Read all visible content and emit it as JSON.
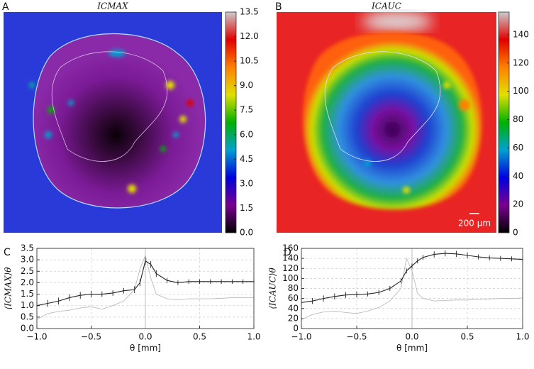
{
  "chart_data": [
    {
      "type": "heatmap",
      "panel_label": "A",
      "title": "ICMAX",
      "colormap": [
        "#000000",
        "#7a0090",
        "#0000dd",
        "#00a0d0",
        "#00b000",
        "#e0e000",
        "#ff8000",
        "#e00000",
        "#cccccc"
      ],
      "clim": [
        0,
        13.5
      ],
      "cticks": [
        {
          "value": 0,
          "label": "0.0"
        },
        1.5,
        {
          "value": 3,
          "label": "3.0"
        },
        4.5,
        {
          "value": 6,
          "label": "6.0"
        },
        7.5,
        {
          "value": 9,
          "label": "9.0"
        },
        10.5,
        {
          "value": 12,
          "label": "12.0"
        },
        13.5
      ]
    },
    {
      "type": "heatmap",
      "panel_label": "B",
      "title": "ICAUC",
      "colormap": [
        "#000000",
        "#7a0090",
        "#0000dd",
        "#00a0d0",
        "#00b000",
        "#e0e000",
        "#ff8000",
        "#e00000",
        "#cccccc"
      ],
      "clim": [
        0,
        156
      ],
      "cticks": [
        0,
        20,
        40,
        60,
        80,
        100,
        120,
        140
      ],
      "scale_bar": "200 µm"
    },
    {
      "type": "line",
      "panel_label": "C",
      "ylabel": "⟨ICMAX⟩θ",
      "xlabel": "θ [mm]",
      "x": [
        -1.0,
        -0.9,
        -0.8,
        -0.7,
        -0.6,
        -0.5,
        -0.4,
        -0.3,
        -0.2,
        -0.1,
        -0.05,
        0,
        0.05,
        0.1,
        0.2,
        0.3,
        0.4,
        0.5,
        0.6,
        0.7,
        0.8,
        0.9,
        1.0
      ],
      "series": [
        {
          "color": "#222222",
          "values": [
            1.0,
            1.1,
            1.2,
            1.35,
            1.45,
            1.5,
            1.5,
            1.55,
            1.65,
            1.7,
            2.0,
            2.95,
            2.8,
            2.4,
            2.1,
            2.0,
            2.05,
            2.05,
            2.05,
            2.05,
            2.05,
            2.05,
            2.05
          ],
          "errors": [
            0.15,
            0.15,
            0.15,
            0.15,
            0.15,
            0.15,
            0.12,
            0.12,
            0.12,
            0.15,
            0.15,
            0.15,
            0.15,
            0.15,
            0.12,
            0.1,
            0.1,
            0.1,
            0.1,
            0.1,
            0.1,
            0.1,
            0.1
          ]
        },
        {
          "color": "#bbbbbb",
          "values": [
            0.4,
            0.65,
            0.75,
            0.8,
            0.9,
            0.95,
            0.85,
            1.0,
            1.2,
            1.7,
            2.6,
            3.2,
            2.2,
            1.5,
            1.3,
            1.25,
            1.3,
            1.3,
            1.3,
            1.32,
            1.35,
            1.35,
            1.35
          ]
        }
      ],
      "xlim": [
        -1,
        1
      ],
      "xticks": [
        {
          "value": -1,
          "label": "−1.0"
        },
        {
          "value": -0.5,
          "label": "−0.5"
        },
        {
          "value": 0,
          "label": "0.0"
        },
        0.5,
        {
          "value": 1,
          "label": "1.0"
        }
      ],
      "ylim": [
        0,
        3.5
      ],
      "yticks": [
        {
          "value": 0,
          "label": "0.0"
        },
        0.5,
        {
          "value": 1,
          "label": "1.0"
        },
        1.5,
        {
          "value": 2,
          "label": "2.0"
        },
        2.5,
        {
          "value": 3,
          "label": "3.0"
        },
        3.5
      ],
      "grid": true
    },
    {
      "type": "line",
      "panel_label": "D",
      "ylabel": "⟨ICAUC⟩θ",
      "xlabel": "θ [mm]",
      "x": [
        -1.0,
        -0.9,
        -0.8,
        -0.7,
        -0.6,
        -0.5,
        -0.4,
        -0.3,
        -0.2,
        -0.1,
        -0.05,
        0,
        0.05,
        0.1,
        0.2,
        0.3,
        0.4,
        0.5,
        0.6,
        0.7,
        0.8,
        0.9,
        1.0
      ],
      "series": [
        {
          "color": "#222222",
          "values": [
            52,
            55,
            60,
            64,
            67,
            68,
            69,
            72,
            80,
            95,
            115,
            125,
            135,
            142,
            148,
            150,
            149,
            146,
            143,
            141,
            140,
            139,
            138
          ],
          "errors": [
            6,
            6,
            6,
            6,
            6,
            6,
            5,
            5,
            5,
            5,
            5,
            5,
            5,
            5,
            6,
            6,
            6,
            6,
            5,
            5,
            5,
            5,
            5
          ]
        },
        {
          "color": "#bbbbbb",
          "values": [
            18,
            28,
            33,
            35,
            32,
            30,
            35,
            42,
            55,
            80,
            140,
            115,
            70,
            60,
            55,
            56,
            57,
            57,
            58,
            59,
            60,
            60,
            61
          ]
        }
      ],
      "xlim": [
        -1,
        1
      ],
      "xticks": [
        {
          "value": -1,
          "label": "−1.0"
        },
        {
          "value": -0.5,
          "label": "−0.5"
        },
        {
          "value": 0,
          "label": "0.0"
        },
        0.5,
        {
          "value": 1,
          "label": "1.0"
        }
      ],
      "ylim": [
        0,
        160
      ],
      "yticks": [
        0,
        20,
        40,
        60,
        80,
        100,
        120,
        140,
        160
      ],
      "grid": true
    }
  ]
}
